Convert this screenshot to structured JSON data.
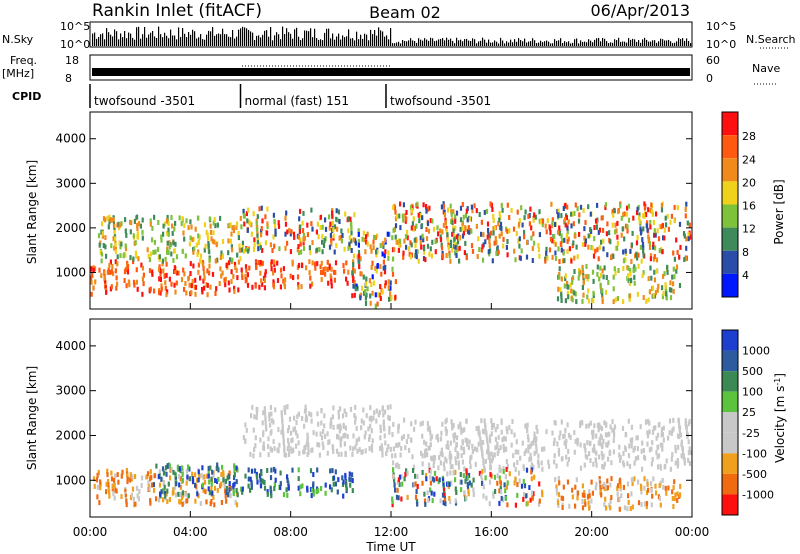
{
  "header": {
    "site": "Rankin Inlet (fitACF)",
    "beam": "Beam 02",
    "date": "06/Apr/2013"
  },
  "labels": {
    "nsky": "N.Sky",
    "nsearch": "N.Search",
    "freq": "Freq.",
    "mhz": "[MHz]",
    "nave": "Nave",
    "cpid": "CPID"
  },
  "ticks": {
    "n_left": [
      "10^5",
      "10^0"
    ],
    "n_right": [
      "10^5",
      "10^0"
    ],
    "freq": [
      "18",
      "8"
    ],
    "nave": [
      "60",
      "0"
    ],
    "range": [
      "1000",
      "2000",
      "3000",
      "4000"
    ],
    "time": [
      "00:00",
      "04:00",
      "08:00",
      "12:00",
      "16:00",
      "20:00",
      "00:00"
    ]
  },
  "cpid_segments": [
    {
      "label": "twofsound -3501",
      "start_h": 0.0,
      "end_h": 6.0
    },
    {
      "label": "normal (fast) 151",
      "start_h": 6.0,
      "end_h": 11.8
    },
    {
      "label": "twofsound -3501",
      "start_h": 11.8,
      "end_h": 24.0
    }
  ],
  "chart_data": [
    {
      "type": "heatmap",
      "title": "Power",
      "xlabel": "Time UT",
      "ylabel": "Slant Range [km]",
      "xlim": [
        0,
        24
      ],
      "ylim": [
        180,
        4600
      ],
      "colorbar": {
        "label": "Power [dB]",
        "ticks": [
          "4",
          "8",
          "12",
          "16",
          "20",
          "24",
          "28"
        ],
        "colors": [
          "#0018ff",
          "#2a4ea8",
          "#3e8a5a",
          "#7ec23c",
          "#f0d21c",
          "#f08a1a",
          "#ff5a10",
          "#ff1010"
        ]
      },
      "regions": [
        {
          "t": [
            0.0,
            5.9
          ],
          "r": [
            550,
            1300
          ],
          "level": "high"
        },
        {
          "t": [
            0.3,
            6.0
          ],
          "r": [
            1300,
            2300
          ],
          "level": "mid"
        },
        {
          "t": [
            6.0,
            10.5
          ],
          "r": [
            700,
            1300
          ],
          "level": "high"
        },
        {
          "t": [
            6.0,
            10.5
          ],
          "r": [
            1500,
            2500
          ],
          "level": "mixed"
        },
        {
          "t": [
            10.4,
            12.2
          ],
          "r": [
            300,
            2000
          ],
          "level": "sparse"
        },
        {
          "t": [
            12.0,
            23.9
          ],
          "r": [
            1300,
            2600
          ],
          "level": "mixed"
        },
        {
          "t": [
            18.5,
            23.5
          ],
          "r": [
            400,
            1200
          ],
          "level": "mid"
        }
      ]
    },
    {
      "type": "heatmap",
      "title": "Velocity",
      "xlabel": "Time UT",
      "ylabel": "Slant Range [km]",
      "xlim": [
        0,
        24
      ],
      "ylim": [
        180,
        4600
      ],
      "colorbar": {
        "label": "Velocity [m s^-1]",
        "ticks": [
          "1000",
          "500",
          "100",
          "25",
          "-25",
          "-100",
          "-500",
          "-1000"
        ],
        "colors": [
          "#1c3fd0",
          "#2e5aa0",
          "#3b8a56",
          "#5dc23e",
          "#c8c8c8",
          "#c8c8c8",
          "#f0a01c",
          "#f06a10",
          "#ff1010"
        ]
      },
      "regions": [
        {
          "t": [
            0.0,
            5.9
          ],
          "r": [
            500,
            1300
          ],
          "level": "negative"
        },
        {
          "t": [
            2.5,
            6.0
          ],
          "r": [
            700,
            1400
          ],
          "level": "positive"
        },
        {
          "t": [
            6.0,
            10.5
          ],
          "r": [
            700,
            1300
          ],
          "level": "positive"
        },
        {
          "t": [
            6.0,
            12.0
          ],
          "r": [
            1600,
            2700
          ],
          "level": "ground"
        },
        {
          "t": [
            12.0,
            23.9
          ],
          "r": [
            1300,
            2400
          ],
          "level": "ground"
        },
        {
          "t": [
            12.0,
            18.0
          ],
          "r": [
            500,
            1300
          ],
          "level": "mixed"
        },
        {
          "t": [
            18.5,
            23.5
          ],
          "r": [
            400,
            1100
          ],
          "level": "negative"
        }
      ]
    }
  ]
}
